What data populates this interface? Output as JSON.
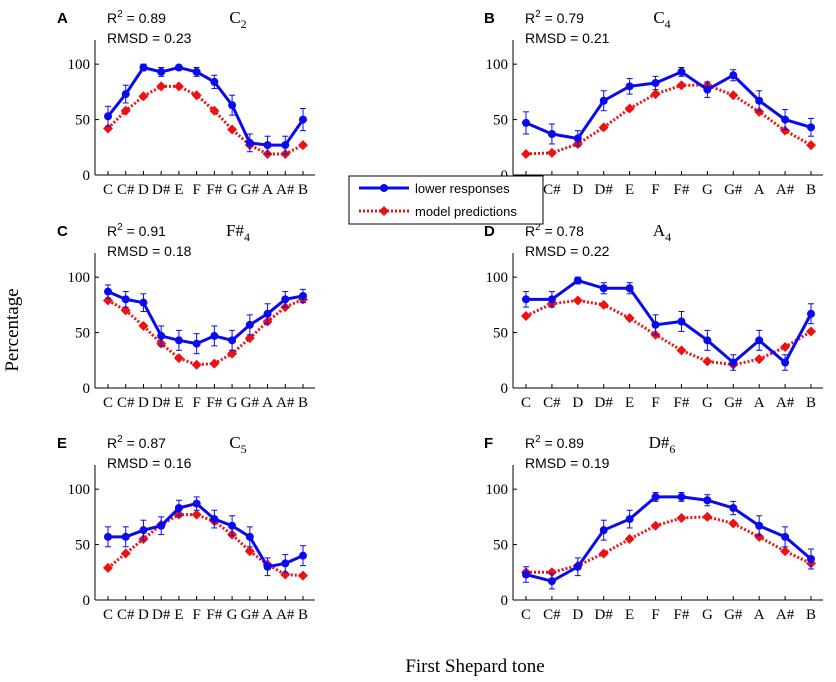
{
  "figure": {
    "y_label": "Percentage",
    "x_label": "First Shepard tone",
    "legend": {
      "series": [
        {
          "label": "lower responses",
          "color": "#0a0aee"
        },
        {
          "label": "model predictions",
          "color": "#ee1111"
        }
      ]
    }
  },
  "chart_data": [
    {
      "type": "line",
      "panel_letter": "A",
      "title_base": "C",
      "title_sub": "2",
      "r2_label": "R",
      "r2_sup": "2",
      "r2_value": "= 0.89",
      "rmsd_text": "RMSD = 0.23",
      "categories": [
        "C",
        "C#",
        "D",
        "D#",
        "E",
        "F",
        "F#",
        "G",
        "G#",
        "A",
        "A#",
        "B"
      ],
      "yticks": [
        0,
        50,
        100
      ],
      "ylim": [
        0,
        120
      ],
      "series": [
        {
          "name": "lower responses",
          "values": [
            53,
            73,
            97,
            93,
            97,
            93,
            84,
            63,
            29,
            27,
            27,
            50
          ],
          "errors": [
            9,
            8,
            3,
            4,
            2,
            4,
            6,
            9,
            8,
            8,
            8,
            10
          ]
        },
        {
          "name": "model predictions",
          "values": [
            42,
            58,
            71,
            80,
            80,
            72,
            58,
            41,
            27,
            19,
            19,
            27
          ]
        }
      ]
    },
    {
      "type": "line",
      "panel_letter": "B",
      "title_base": "C",
      "title_sub": "4",
      "r2_label": "R",
      "r2_sup": "2",
      "r2_value": "= 0.79",
      "rmsd_text": "RMSD = 0.21",
      "categories": [
        "C",
        "C#",
        "D",
        "D#",
        "E",
        "F",
        "F#",
        "G",
        "G#",
        "A",
        "A#",
        "B"
      ],
      "yticks": [
        0,
        50,
        100
      ],
      "ylim": [
        0,
        120
      ],
      "series": [
        {
          "name": "lower responses",
          "values": [
            47,
            37,
            33,
            67,
            80,
            83,
            93,
            77,
            90,
            67,
            50,
            43
          ],
          "errors": [
            10,
            9,
            7,
            9,
            7,
            6,
            4,
            7,
            5,
            9,
            9,
            8
          ]
        },
        {
          "name": "model predictions",
          "values": [
            19,
            20,
            28,
            43,
            60,
            73,
            81,
            81,
            72,
            57,
            40,
            27
          ]
        }
      ]
    },
    {
      "type": "line",
      "panel_letter": "C",
      "title_base": "F#",
      "title_sub": "4",
      "r2_label": "R",
      "r2_sup": "2",
      "r2_value": "= 0.91",
      "rmsd_text": "RMSD = 0.18",
      "categories": [
        "C",
        "C#",
        "D",
        "D#",
        "E",
        "F",
        "F#",
        "G",
        "G#",
        "A",
        "A#",
        "B"
      ],
      "yticks": [
        0,
        50,
        100
      ],
      "ylim": [
        0,
        120
      ],
      "series": [
        {
          "name": "lower responses",
          "values": [
            87,
            80,
            77,
            47,
            43,
            40,
            47,
            43,
            57,
            67,
            80,
            83
          ],
          "errors": [
            6,
            7,
            8,
            9,
            9,
            9,
            9,
            9,
            9,
            9,
            7,
            6
          ]
        },
        {
          "name": "model predictions",
          "values": [
            79,
            70,
            56,
            40,
            27,
            21,
            22,
            31,
            45,
            60,
            73,
            80
          ]
        }
      ]
    },
    {
      "type": "line",
      "panel_letter": "D",
      "title_base": "A",
      "title_sub": "4",
      "r2_label": "R",
      "r2_sup": "2",
      "r2_value": "= 0.78",
      "rmsd_text": "RMSD = 0.22",
      "categories": [
        "C",
        "C#",
        "D",
        "D#",
        "E",
        "F",
        "F#",
        "G",
        "G#",
        "A",
        "A#",
        "B"
      ],
      "yticks": [
        0,
        50,
        100
      ],
      "ylim": [
        0,
        120
      ],
      "series": [
        {
          "name": "lower responses",
          "values": [
            80,
            80,
            97,
            90,
            90,
            57,
            60,
            43,
            23,
            43,
            23,
            67
          ],
          "errors": [
            7,
            7,
            3,
            5,
            5,
            9,
            9,
            9,
            7,
            9,
            7,
            9
          ]
        },
        {
          "name": "model predictions",
          "values": [
            65,
            76,
            79,
            75,
            63,
            48,
            34,
            24,
            21,
            26,
            37,
            51
          ]
        }
      ]
    },
    {
      "type": "line",
      "panel_letter": "E",
      "title_base": "C",
      "title_sub": "5",
      "r2_label": "R",
      "r2_sup": "2",
      "r2_value": "= 0.87",
      "rmsd_text": "RMSD = 0.16",
      "categories": [
        "C",
        "C#",
        "D",
        "D#",
        "E",
        "F",
        "F#",
        "G",
        "G#",
        "A",
        "A#",
        "B"
      ],
      "yticks": [
        0,
        50,
        100
      ],
      "ylim": [
        0,
        120
      ],
      "series": [
        {
          "name": "lower responses",
          "values": [
            57,
            57,
            63,
            67,
            83,
            87,
            73,
            67,
            57,
            30,
            33,
            40
          ],
          "errors": [
            9,
            9,
            9,
            8,
            7,
            6,
            8,
            9,
            9,
            8,
            8,
            9
          ]
        },
        {
          "name": "model predictions",
          "values": [
            29,
            42,
            55,
            68,
            77,
            77,
            71,
            59,
            44,
            32,
            23,
            22
          ]
        }
      ]
    },
    {
      "type": "line",
      "panel_letter": "F",
      "title_base": "D#",
      "title_sub": "6",
      "r2_label": "R",
      "r2_sup": "2",
      "r2_value": "= 0.89",
      "rmsd_text": "RMSD = 0.19",
      "categories": [
        "C",
        "C#",
        "D",
        "D#",
        "E",
        "F",
        "F#",
        "G",
        "G#",
        "A",
        "A#",
        "B"
      ],
      "yticks": [
        0,
        50,
        100
      ],
      "ylim": [
        0,
        120
      ],
      "series": [
        {
          "name": "lower responses",
          "values": [
            23,
            17,
            30,
            63,
            73,
            93,
            93,
            90,
            83,
            67,
            57,
            37
          ],
          "errors": [
            7,
            7,
            8,
            9,
            8,
            4,
            4,
            5,
            6,
            9,
            9,
            9
          ]
        },
        {
          "name": "model predictions",
          "values": [
            25,
            25,
            31,
            42,
            55,
            67,
            74,
            75,
            69,
            57,
            44,
            33
          ]
        }
      ]
    }
  ]
}
